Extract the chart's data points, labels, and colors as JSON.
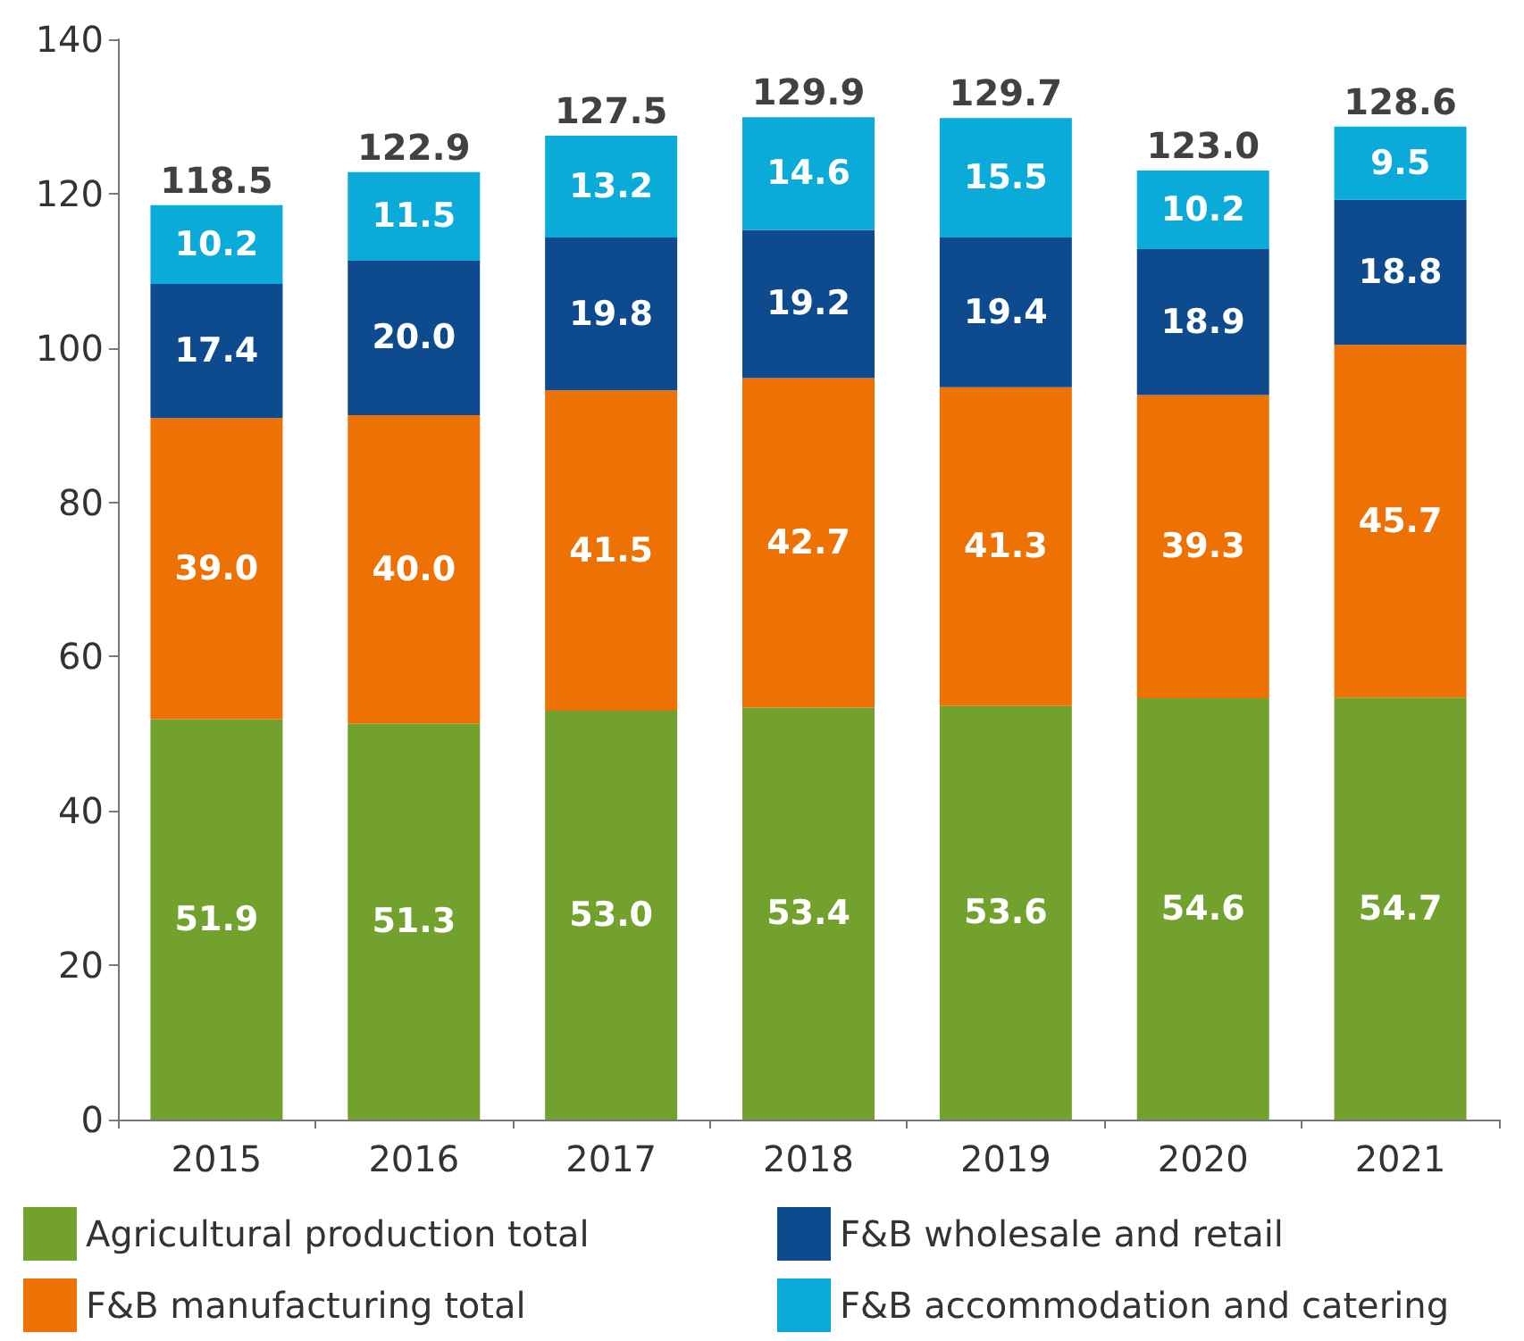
{
  "chart_data": {
    "type": "bar",
    "stacked": true,
    "categories": [
      "2015",
      "2016",
      "2017",
      "2018",
      "2019",
      "2020",
      "2021"
    ],
    "series": [
      {
        "name": "Agricultural production total",
        "color": "#73a12e",
        "values": [
          51.9,
          51.3,
          53.0,
          53.4,
          53.6,
          54.6,
          54.7
        ],
        "value_labels": [
          "51.9",
          "51.3",
          "53.0",
          "53.4",
          "53.6",
          "54.6",
          "54.7"
        ]
      },
      {
        "name": "F&B manufacturing total",
        "color": "#ee7203",
        "values": [
          39.0,
          40.0,
          41.5,
          42.7,
          41.3,
          39.3,
          45.7
        ],
        "value_labels": [
          "39.0",
          "40.0",
          "41.5",
          "42.7",
          "41.3",
          "39.3",
          "45.7"
        ]
      },
      {
        "name": "F&B wholesale and retail",
        "color": "#0e4a8e",
        "values": [
          17.4,
          20.0,
          19.8,
          19.2,
          19.4,
          18.9,
          18.8
        ],
        "value_labels": [
          "17.4",
          "20.0",
          "19.8",
          "19.2",
          "19.4",
          "18.9",
          "18.8"
        ]
      },
      {
        "name": "F&B accommodation and catering",
        "color": "#0aaad9",
        "values": [
          10.2,
          11.5,
          13.2,
          14.6,
          15.5,
          10.2,
          9.5
        ],
        "value_labels": [
          "10.2",
          "11.5",
          "13.2",
          "14.6",
          "15.5",
          "10.2",
          "9.5"
        ]
      }
    ],
    "totals": [
      "118.5",
      "122.9",
      "127.5",
      "129.9",
      "129.7",
      "123.0",
      "128.6"
    ],
    "ylim": [
      0,
      140
    ],
    "yticks": [
      0,
      20,
      40,
      60,
      80,
      100,
      120,
      140
    ],
    "grid": false,
    "legend": "bottom"
  }
}
